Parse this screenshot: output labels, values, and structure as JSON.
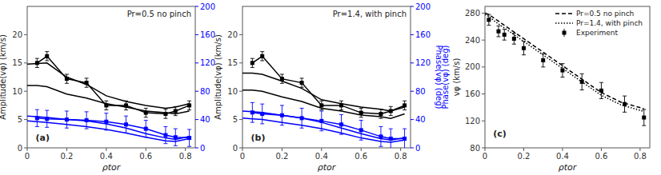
{
  "chart_data": [
    {
      "type": "line",
      "title": "Pr=0.5 no pinch",
      "x_label": "ρtor",
      "y_label": "Amplitude(vφ) (km/s)",
      "xlim": [
        0,
        0.85
      ],
      "xticks": [
        0,
        0.2,
        0.4,
        0.6,
        0.8
      ],
      "ylim": [
        0,
        25
      ],
      "yticks": [
        0,
        5,
        10,
        15,
        20
      ],
      "y2lim": [
        0,
        200
      ],
      "y2ticks": [
        0,
        40,
        80,
        120,
        160,
        200
      ],
      "annotations": [
        {
          "text": "(a)"
        }
      ],
      "series": [
        {
          "color": "black",
          "line_style": "solid",
          "x": [
            0.0,
            0.05,
            0.1,
            0.2,
            0.3,
            0.4,
            0.5,
            0.6,
            0.7,
            0.75,
            0.82
          ],
          "values": [
            14.8,
            14.9,
            15.0,
            12.5,
            11.2,
            9.2,
            8.2,
            7.5,
            7.0,
            7.2,
            7.8
          ]
        },
        {
          "color": "black",
          "line_style": "solid",
          "x": [
            0.0,
            0.05,
            0.1,
            0.2,
            0.3,
            0.4,
            0.5,
            0.6,
            0.7,
            0.75,
            0.82
          ],
          "values": [
            11.0,
            11.0,
            10.8,
            9.5,
            8.8,
            7.8,
            7.2,
            6.5,
            6.2,
            6.0,
            6.5
          ]
        },
        {
          "color": "black",
          "line_style": "solid",
          "marker": "square",
          "x": [
            0.05,
            0.1,
            0.2,
            0.3,
            0.4,
            0.5,
            0.6,
            0.7,
            0.75,
            0.82
          ],
          "values": [
            15.0,
            16.2,
            12.2,
            11.5,
            7.5,
            7.5,
            6.2,
            6.0,
            6.5,
            7.5
          ],
          "errors": [
            0.8,
            0.8,
            0.8,
            0.8,
            0.8,
            0.8,
            0.8,
            0.8,
            0.8,
            0.8
          ]
        },
        {
          "color": "blue",
          "axis": "y2",
          "line_style": "solid",
          "x": [
            0.0,
            0.05,
            0.1,
            0.2,
            0.3,
            0.4,
            0.5,
            0.6,
            0.7,
            0.75,
            0.82
          ],
          "values": [
            45,
            44,
            43,
            40,
            38,
            34,
            28,
            20,
            14,
            12,
            16
          ]
        },
        {
          "color": "blue",
          "axis": "y2",
          "line_style": "solid",
          "x": [
            0.0,
            0.05,
            0.1,
            0.2,
            0.3,
            0.4,
            0.5,
            0.6,
            0.7,
            0.75,
            0.82
          ],
          "values": [
            38,
            37,
            36,
            33,
            30,
            26,
            21,
            15,
            10,
            9,
            13
          ]
        },
        {
          "color": "blue",
          "axis": "y2",
          "line_style": "solid",
          "marker": "square",
          "x": [
            0.05,
            0.1,
            0.2,
            0.3,
            0.4,
            0.5,
            0.6,
            0.7,
            0.75,
            0.82
          ],
          "values": [
            42,
            41,
            40,
            39,
            37,
            33,
            27,
            18,
            15,
            14
          ],
          "errors": [
            12,
            12,
            12,
            12,
            12,
            12,
            12,
            12,
            12,
            12
          ]
        }
      ]
    },
    {
      "type": "line",
      "title": "Pr=1.4, with pinch",
      "x_label": "ρtor",
      "y_label": "Amplitude(vφ) (km/s)",
      "y2_label": "Phase(vφ) (deg)",
      "xlim": [
        0,
        0.85
      ],
      "xticks": [
        0,
        0.2,
        0.4,
        0.6,
        0.8
      ],
      "ylim": [
        0,
        25
      ],
      "yticks": [
        0,
        5,
        10,
        15,
        20
      ],
      "y2lim": [
        0,
        200
      ],
      "y2ticks": [
        0,
        40,
        80,
        120,
        160,
        200
      ],
      "annotations": [
        {
          "text": "(b)"
        }
      ],
      "series": [
        {
          "color": "black",
          "line_style": "solid",
          "x": [
            0.0,
            0.05,
            0.1,
            0.2,
            0.3,
            0.4,
            0.5,
            0.6,
            0.7,
            0.75,
            0.82
          ],
          "values": [
            13.2,
            13.2,
            13.0,
            11.8,
            10.5,
            8.5,
            7.8,
            7.2,
            6.8,
            6.5,
            7.2
          ]
        },
        {
          "color": "black",
          "line_style": "solid",
          "x": [
            0.0,
            0.05,
            0.1,
            0.2,
            0.3,
            0.4,
            0.5,
            0.6,
            0.7,
            0.75,
            0.82
          ],
          "values": [
            10.2,
            10.2,
            10.0,
            9.0,
            8.2,
            7.0,
            6.5,
            5.8,
            5.5,
            5.2,
            6.0
          ]
        },
        {
          "color": "black",
          "line_style": "solid",
          "marker": "square",
          "x": [
            0.05,
            0.1,
            0.2,
            0.3,
            0.4,
            0.5,
            0.6,
            0.7,
            0.75,
            0.82
          ],
          "values": [
            15.0,
            16.2,
            12.2,
            11.5,
            7.5,
            7.5,
            6.2,
            6.0,
            6.5,
            7.5
          ],
          "errors": [
            0.8,
            0.8,
            0.8,
            0.8,
            0.8,
            0.8,
            0.8,
            0.8,
            0.8,
            0.8
          ]
        },
        {
          "color": "blue",
          "axis": "y2",
          "line_style": "solid",
          "x": [
            0.0,
            0.05,
            0.1,
            0.2,
            0.3,
            0.4,
            0.5,
            0.6,
            0.7,
            0.75,
            0.82
          ],
          "values": [
            52,
            51,
            50,
            46,
            42,
            36,
            28,
            20,
            13,
            11,
            14
          ]
        },
        {
          "color": "blue",
          "axis": "y2",
          "line_style": "solid",
          "x": [
            0.0,
            0.05,
            0.1,
            0.2,
            0.3,
            0.4,
            0.5,
            0.6,
            0.7,
            0.75,
            0.82
          ],
          "values": [
            42,
            41,
            40,
            36,
            32,
            27,
            21,
            14,
            9,
            8,
            11
          ]
        },
        {
          "color": "blue",
          "axis": "y2",
          "line_style": "solid",
          "marker": "square",
          "x": [
            0.05,
            0.1,
            0.2,
            0.3,
            0.4,
            0.5,
            0.6,
            0.7,
            0.75,
            0.82
          ],
          "values": [
            50,
            48,
            46,
            42,
            38,
            33,
            25,
            16,
            13,
            13
          ],
          "errors": [
            14,
            14,
            14,
            14,
            14,
            14,
            14,
            14,
            14,
            14
          ]
        }
      ]
    },
    {
      "type": "line",
      "x_label": "ρtor",
      "y_label": "vφ (km/s)",
      "xlim": [
        0,
        0.85
      ],
      "xticks": [
        0,
        0.2,
        0.4,
        0.6,
        0.8
      ],
      "ylim": [
        80,
        290
      ],
      "yticks": [
        80,
        120,
        160,
        200,
        240,
        280
      ],
      "legend": "upper right",
      "annotations": [
        {
          "text": "(c)"
        },
        {
          "text": "Phase(vφ) (deg)",
          "color": "blue"
        }
      ],
      "series": [
        {
          "name": "Pr=0.5 no pinch",
          "color": "black",
          "line_style": "dashed",
          "x": [
            0.0,
            0.02,
            0.05,
            0.1,
            0.15,
            0.2,
            0.3,
            0.4,
            0.5,
            0.6,
            0.7,
            0.82
          ],
          "values": [
            280,
            278,
            272,
            262,
            252,
            242,
            222,
            202,
            182,
            162,
            148,
            138
          ]
        },
        {
          "name": "Pr=1.4, with pinch",
          "color": "black",
          "line_style": "dotted",
          "x": [
            0.0,
            0.02,
            0.05,
            0.1,
            0.15,
            0.2,
            0.3,
            0.4,
            0.5,
            0.6,
            0.7,
            0.82
          ],
          "values": [
            278,
            275,
            268,
            258,
            248,
            238,
            218,
            198,
            178,
            158,
            144,
            134
          ]
        },
        {
          "name": "Experiment",
          "color": "black",
          "line_style": "none",
          "marker": "square",
          "x": [
            0.02,
            0.07,
            0.1,
            0.15,
            0.2,
            0.3,
            0.4,
            0.5,
            0.6,
            0.72,
            0.82
          ],
          "values": [
            270,
            253,
            248,
            242,
            228,
            210,
            195,
            178,
            165,
            145,
            125
          ],
          "errors": [
            8,
            8,
            8,
            8,
            10,
            10,
            10,
            12,
            12,
            12,
            12
          ]
        }
      ]
    }
  ]
}
